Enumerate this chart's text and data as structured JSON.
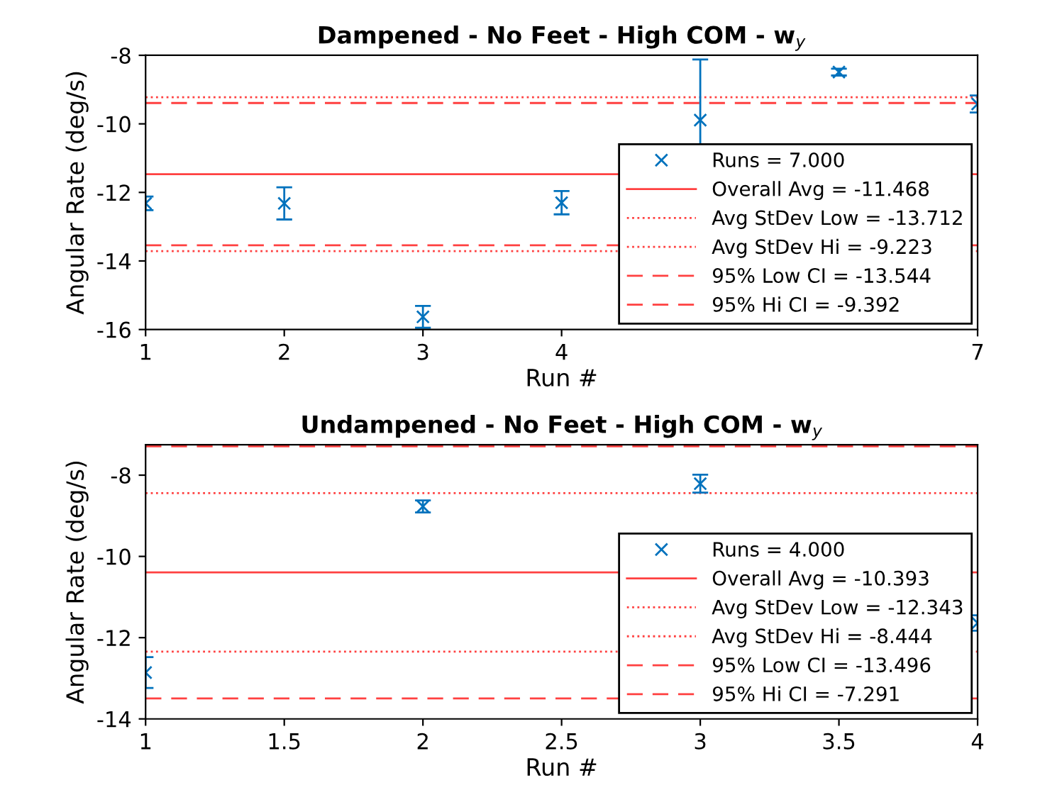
{
  "chart_data": [
    {
      "type": "scatter",
      "title": "Dampened - No Feet - High COM - w$_{y}$",
      "xlabel": "Run #",
      "ylabel": "Angular Rate (deg/s)",
      "xlim": [
        1,
        7
      ],
      "xticks": [
        1,
        2,
        3,
        4,
        7
      ],
      "ylim": [
        -16,
        -8
      ],
      "yticks": [
        -16,
        -14,
        -12,
        -10,
        -8
      ],
      "grid": false,
      "legend": "bottom right",
      "marker": "cross",
      "series": [
        {
          "name": "Runs = 7.000",
          "color": "#0072bd",
          "x": [
            1,
            2,
            3,
            4,
            5,
            6,
            7
          ],
          "values": [
            -12.32,
            -12.32,
            -15.63,
            -12.3,
            -9.89,
            -8.49,
            -9.42
          ],
          "errors": [
            0.2,
            0.47,
            0.32,
            0.34,
            1.77,
            0.1,
            0.25
          ]
        }
      ],
      "ref_lines": [
        {
          "axis": "y",
          "value": -11.468,
          "label": "Overall Avg = -11.468",
          "color": "#ff4040",
          "line_style": "solid"
        },
        {
          "axis": "y",
          "value": -13.712,
          "label": "Avg StDev Low = -13.712",
          "color": "#ff4040",
          "line_style": "dotted"
        },
        {
          "axis": "y",
          "value": -9.223,
          "label": "Avg StDev Hi = -9.223",
          "color": "#ff4040",
          "line_style": "dotted"
        },
        {
          "axis": "y",
          "value": -13.544,
          "label": "95% Low CI = -13.544",
          "color": "#ff4040",
          "line_style": "dashed"
        },
        {
          "axis": "y",
          "value": -9.392,
          "label": "95% Hi CI = -9.392",
          "color": "#ff4040",
          "line_style": "dashed"
        }
      ]
    },
    {
      "type": "scatter",
      "title": "Undampened - No Feet - High COM - w$_{y}$",
      "xlabel": "Run #",
      "ylabel": "Angular Rate (deg/s)",
      "xlim": [
        1,
        4
      ],
      "xticks": [
        1,
        1.5,
        2,
        2.5,
        3,
        3.5,
        4
      ],
      "ylim": [
        -14,
        -7.25
      ],
      "yticks": [
        -14,
        -12,
        -10,
        -8
      ],
      "grid": false,
      "legend": "bottom right",
      "marker": "cross",
      "series": [
        {
          "name": "Runs = 4.000",
          "color": "#0072bd",
          "x": [
            1,
            2,
            3,
            4
          ],
          "values": [
            -12.86,
            -8.77,
            -8.21,
            -11.64
          ],
          "errors": [
            0.38,
            0.15,
            0.22,
            0.19
          ]
        }
      ],
      "ref_lines": [
        {
          "axis": "y",
          "value": -10.393,
          "label": "Overall Avg = -10.393",
          "color": "#ff4040",
          "line_style": "solid"
        },
        {
          "axis": "y",
          "value": -12.343,
          "label": "Avg StDev Low = -12.343",
          "color": "#ff4040",
          "line_style": "dotted"
        },
        {
          "axis": "y",
          "value": -8.444,
          "label": "Avg StDev Hi = -8.444",
          "color": "#ff4040",
          "line_style": "dotted"
        },
        {
          "axis": "y",
          "value": -13.496,
          "label": "95% Low CI = -13.496",
          "color": "#ff4040",
          "line_style": "dashed"
        },
        {
          "axis": "y",
          "value": -7.291,
          "label": "95% Hi CI = -7.291",
          "color": "#ff4040",
          "line_style": "dashed"
        }
      ]
    }
  ]
}
